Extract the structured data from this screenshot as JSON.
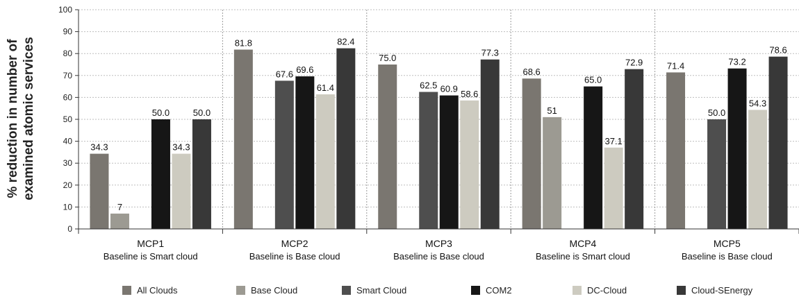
{
  "chart_data": {
    "type": "bar",
    "title": "",
    "xlabel": "",
    "ylabel": [
      "% reduction in number of",
      "examined atomic services"
    ],
    "ylim": [
      0,
      100
    ],
    "yticks": [
      0,
      10,
      20,
      30,
      40,
      50,
      60,
      70,
      80,
      90,
      100
    ],
    "grid": "horizontal dotted",
    "legend_position": "bottom",
    "categories": [
      {
        "name": "MCP1",
        "sub": "Baseline is Smart cloud"
      },
      {
        "name": "MCP2",
        "sub": "Baseline is Base cloud"
      },
      {
        "name": "MCP3",
        "sub": "Baseline is Base cloud"
      },
      {
        "name": "MCP4",
        "sub": "Baseline is Smart cloud"
      },
      {
        "name": "MCP5",
        "sub": "Baseline is Base cloud"
      }
    ],
    "series": [
      {
        "name": "All Clouds",
        "color": "#7a7670",
        "values": [
          34.3,
          81.8,
          75.0,
          68.6,
          71.4
        ],
        "labels": [
          "34.3",
          "81.8",
          "75.0",
          "68.6",
          "71.4"
        ]
      },
      {
        "name": "Base Cloud",
        "color": "#9c9a92",
        "values": [
          7,
          null,
          null,
          51,
          null
        ],
        "labels": [
          "7",
          "",
          "",
          "51",
          ""
        ]
      },
      {
        "name": "Smart Cloud",
        "color": "#4e4e4e",
        "values": [
          null,
          67.6,
          62.5,
          null,
          50.0
        ],
        "labels": [
          "",
          "67.6",
          "62.5",
          "",
          "50.0"
        ]
      },
      {
        "name": "COM2",
        "color": "#161616",
        "values": [
          50.0,
          69.6,
          60.9,
          65.0,
          73.2
        ],
        "labels": [
          "50.0",
          "69.6",
          "60.9",
          "65.0",
          "73.2"
        ]
      },
      {
        "name": "DC-Cloud",
        "color": "#cdcbc0",
        "values": [
          34.3,
          61.4,
          58.6,
          37.1,
          54.3
        ],
        "labels": [
          "34.3",
          "61.4",
          "58.6",
          "37.1",
          "54.3"
        ]
      },
      {
        "name": "Cloud-SEnergy",
        "color": "#383838",
        "values": [
          50.0,
          82.4,
          77.3,
          72.9,
          78.6
        ],
        "labels": [
          "50.0",
          "82.4",
          "77.3",
          "72.9",
          "78.6"
        ]
      }
    ]
  }
}
